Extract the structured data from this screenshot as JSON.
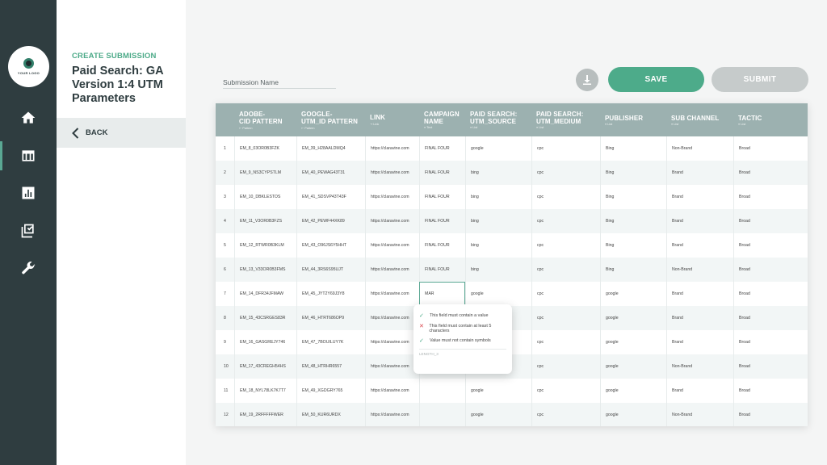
{
  "logo": {
    "text": "YOUR LOGO"
  },
  "nav": [
    {
      "icon": "home-icon",
      "label": "Home",
      "active": false
    },
    {
      "icon": "table-icon",
      "label": "Submissions",
      "active": true
    },
    {
      "icon": "bar-chart-icon",
      "label": "Reports",
      "active": false
    },
    {
      "icon": "checklist-icon",
      "label": "Approvals",
      "active": false
    },
    {
      "icon": "wrench-icon",
      "label": "Settings",
      "active": false
    }
  ],
  "panel": {
    "eyebrow": "CREATE SUBMISSION",
    "title": "Paid Search: GA Version 1:4 UTM Parameters",
    "back_label": "BACK"
  },
  "header": {
    "submission_name_placeholder": "Submission Name",
    "save_label": "SAVE",
    "submit_label": "SUBMIT"
  },
  "table": {
    "columns": [
      {
        "label": "ADOBE-\nCID PATTERN",
        "sub": "⇠ Pattern"
      },
      {
        "label": "GOOGLE-\nUTM_ID PATTERN",
        "sub": "⇠ Pattern"
      },
      {
        "label": "LINK",
        "sub": "⇢ Link"
      },
      {
        "label": "CAMPAIGN\nNAME",
        "sub": "≡ Text"
      },
      {
        "label": "PAID SEARCH:\nUTM_SOURCE",
        "sub": "≡ List"
      },
      {
        "label": "PAID SEARCH:\nUTM_MEDIUM",
        "sub": "≡ List"
      },
      {
        "label": "PUBLISHER",
        "sub": "≡ List"
      },
      {
        "label": "SUB CHANNEL",
        "sub": "≡ List"
      },
      {
        "label": "TACTIC",
        "sub": "≡ List"
      }
    ],
    "rows": [
      [
        "1",
        "EM_8_03OR0B3FZK",
        "EM_39_H28AALDMQ4",
        "https://claravine.com",
        "FINAL FOUR",
        "google",
        "cpc",
        "Bing",
        "Non-Brand",
        "Broad"
      ],
      [
        "2",
        "EM_9_NS3CYPSTLM",
        "EM_40_PEWAG43T31",
        "https://claravine.com",
        "FINAL FOUR",
        "bing",
        "cpc",
        "Bing",
        "Brand",
        "Broad"
      ],
      [
        "3",
        "EM_10_DBKLESTOS",
        "EM_41_SDSVP43T43F",
        "https://claravine.com",
        "FINAL FOUR",
        "bing",
        "cpc",
        "Bing",
        "Brand",
        "Broad"
      ],
      [
        "4",
        "EM_11_V3OR0B3FZS",
        "EM_42_PEWF44XK89",
        "https://claravine.com",
        "FINAL FOUR",
        "bing",
        "cpc",
        "Bing",
        "Brand",
        "Broad"
      ],
      [
        "5",
        "EM_12_RTWR0B3KLM",
        "EM_43_O96JS6Y5HHT",
        "https://claravine.com",
        "FINAL FOUR",
        "bing",
        "cpc",
        "Bing",
        "Brand",
        "Broad"
      ],
      [
        "6",
        "EM_13_V33OR0B3FMS",
        "EM_44_3RS6S95UJT",
        "https://claravine.com",
        "FINAL FOUR",
        "bing",
        "cpc",
        "Bing",
        "Non-Brand",
        "Broad"
      ],
      [
        "7",
        "EM_14_DFR34JFMAW",
        "EM_45_JYT2Y69J3Y8",
        "https://claravine.com",
        "MAR",
        "google",
        "cpc",
        "google",
        "Brand",
        "Broad"
      ],
      [
        "8",
        "EM_15_43CSRGES83R",
        "EM_46_HTRT686OP9",
        "https://claravine.com",
        "",
        "",
        "cpc",
        "google",
        "Brand",
        "Broad"
      ],
      [
        "9",
        "EM_16_GASGREJY746",
        "EM_47_7BOUILUY7K",
        "https://claravine.com",
        "",
        "",
        "cpc",
        "google",
        "Brand",
        "Broad"
      ],
      [
        "10",
        "EM_17_43CREGH54HS",
        "EM_48_HTRHR6557",
        "https://claravine.com",
        "",
        "",
        "cpc",
        "google",
        "Non-Brand",
        "Broad"
      ],
      [
        "11",
        "EM_18_NYL78LK7K7T7",
        "EM_49_XGDGRY765",
        "https://claravine.com",
        "",
        "google",
        "cpc",
        "google",
        "Brand",
        "Broad"
      ],
      [
        "12",
        "EM_19_2RFFFFFWER",
        "EM_50_KUR6URDX",
        "https://claravine.com",
        "",
        "google",
        "cpc",
        "google",
        "Non-Brand",
        "Broad"
      ]
    ]
  },
  "validation_tooltip": {
    "rules": [
      {
        "status": "pass",
        "text": "This field must contain a value"
      },
      {
        "status": "fail",
        "text": "This field must contain at least 5 characters"
      },
      {
        "status": "pass",
        "text": "Value must not contain symbols"
      }
    ],
    "footer": "LENGTH_3"
  },
  "colors": {
    "rail": "#2f3d40",
    "accent": "#4dab8a",
    "table_header": "#9cb1b0",
    "submit_disabled": "#c6cbcb",
    "error": "#d9434b"
  }
}
